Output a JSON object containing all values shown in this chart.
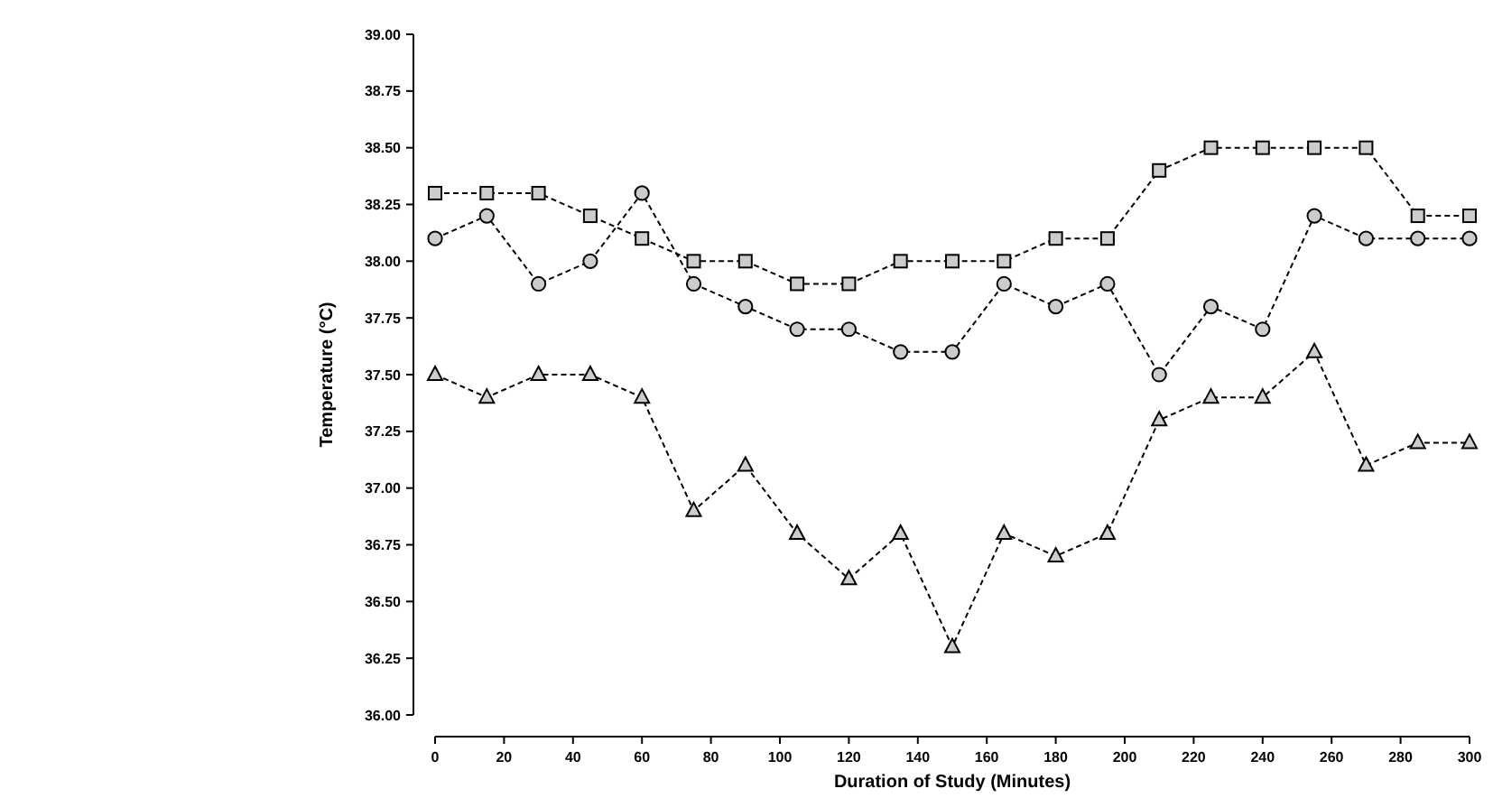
{
  "chart_data": {
    "type": "line",
    "xlabel": "Duration of Study (Minutes)",
    "ylabel": "Temperature (°C)",
    "x": [
      0,
      15,
      30,
      45,
      60,
      75,
      90,
      105,
      120,
      135,
      150,
      165,
      180,
      195,
      210,
      225,
      240,
      255,
      270,
      285,
      300
    ],
    "series": [
      {
        "color": "#000000",
        "marker": "square",
        "values": [
          38.3,
          38.3,
          38.3,
          38.2,
          38.1,
          38.0,
          38.0,
          37.9,
          37.9,
          38.0,
          38.0,
          38.0,
          38.1,
          38.1,
          38.4,
          38.5,
          38.5,
          38.5,
          38.5,
          38.2,
          38.2
        ]
      },
      {
        "color": "#000000",
        "marker": "circle",
        "values": [
          38.1,
          38.2,
          37.9,
          38.0,
          38.3,
          37.9,
          37.8,
          37.7,
          37.7,
          37.6,
          37.6,
          37.9,
          37.8,
          37.9,
          37.5,
          37.8,
          37.7,
          38.2,
          38.1,
          38.1,
          38.1
        ]
      },
      {
        "color": "#000000",
        "marker": "triangle",
        "values": [
          37.5,
          37.4,
          37.5,
          37.5,
          37.4,
          36.9,
          37.1,
          36.8,
          36.6,
          36.8,
          36.3,
          36.8,
          36.7,
          36.8,
          37.3,
          37.4,
          37.4,
          37.6,
          37.1,
          37.2,
          37.2
        ]
      }
    ],
    "line_style": "dashed",
    "xlim": [
      0,
      300
    ],
    "xticks": [
      0,
      20,
      40,
      60,
      80,
      100,
      120,
      140,
      160,
      180,
      200,
      220,
      240,
      260,
      280,
      300
    ],
    "ylim": [
      36,
      39
    ],
    "yticks": [
      {
        "value": 36,
        "label": "36.00"
      },
      {
        "value": 36.25,
        "label": "36.25"
      },
      {
        "value": 36.5,
        "label": "36.50"
      },
      {
        "value": 36.75,
        "label": "36.75"
      },
      {
        "value": 37,
        "label": "37.00"
      },
      {
        "value": 37.25,
        "label": "37.25"
      },
      {
        "value": 37.5,
        "label": "37.50"
      },
      {
        "value": 37.75,
        "label": "37.75"
      },
      {
        "value": 38,
        "label": "38.00"
      },
      {
        "value": 38.25,
        "label": "38.25"
      },
      {
        "value": 38.5,
        "label": "38.50"
      },
      {
        "value": 38.75,
        "label": "38.75"
      },
      {
        "value": 39,
        "label": "39.00"
      }
    ]
  }
}
